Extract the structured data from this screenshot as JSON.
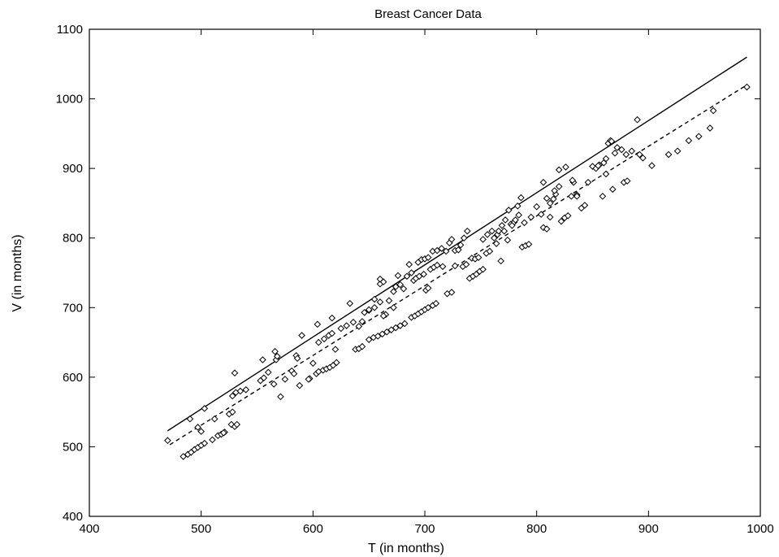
{
  "chart_data": {
    "type": "scatter",
    "title": "Breast Cancer Data",
    "xlabel": "T (in months)",
    "ylabel": "V (in months)",
    "xlim": [
      400,
      1000
    ],
    "ylim": [
      400,
      1100
    ],
    "xticks": [
      400,
      500,
      600,
      700,
      800,
      900,
      1000
    ],
    "yticks": [
      400,
      500,
      600,
      700,
      800,
      900,
      1000,
      1100
    ],
    "grid": false,
    "legend": "none",
    "marker": "diamond",
    "points": [
      [
        470,
        509
      ],
      [
        484,
        486
      ],
      [
        488,
        489
      ],
      [
        491,
        492
      ],
      [
        494,
        496
      ],
      [
        497,
        499
      ],
      [
        500,
        502
      ],
      [
        503,
        505
      ],
      [
        510,
        510
      ],
      [
        515,
        516
      ],
      [
        518,
        518
      ],
      [
        521,
        521
      ],
      [
        527,
        532
      ],
      [
        530,
        529
      ],
      [
        532,
        532
      ],
      [
        490,
        540
      ],
      [
        497,
        528
      ],
      [
        500,
        522
      ],
      [
        503,
        555
      ],
      [
        512,
        540
      ],
      [
        525,
        547
      ],
      [
        528,
        550
      ],
      [
        528,
        573
      ],
      [
        531,
        578
      ],
      [
        535,
        580
      ],
      [
        540,
        582
      ],
      [
        530,
        606
      ],
      [
        520,
        520
      ],
      [
        553,
        595
      ],
      [
        556,
        599
      ],
      [
        560,
        607
      ],
      [
        565,
        590
      ],
      [
        567,
        625
      ],
      [
        571,
        572
      ],
      [
        575,
        597
      ],
      [
        581,
        609
      ],
      [
        583,
        605
      ],
      [
        588,
        588
      ],
      [
        597,
        598
      ],
      [
        603,
        605
      ],
      [
        605,
        608
      ],
      [
        609,
        610
      ],
      [
        612,
        612
      ],
      [
        615,
        614
      ],
      [
        618,
        617
      ],
      [
        621,
        621
      ],
      [
        555,
        625
      ],
      [
        566,
        637
      ],
      [
        585,
        631
      ],
      [
        590,
        660
      ],
      [
        600,
        620
      ],
      [
        605,
        650
      ],
      [
        610,
        655
      ],
      [
        614,
        660
      ],
      [
        617,
        663
      ],
      [
        620,
        640
      ],
      [
        625,
        670
      ],
      [
        630,
        674
      ],
      [
        636,
        679
      ],
      [
        641,
        673
      ],
      [
        644,
        680
      ],
      [
        617,
        685
      ],
      [
        604,
        676
      ],
      [
        633,
        706
      ],
      [
        568,
        630
      ],
      [
        596,
        597
      ],
      [
        586,
        627
      ],
      [
        638,
        640
      ],
      [
        641,
        641
      ],
      [
        644,
        644
      ],
      [
        650,
        654
      ],
      [
        654,
        657
      ],
      [
        658,
        659
      ],
      [
        662,
        662
      ],
      [
        666,
        665
      ],
      [
        670,
        668
      ],
      [
        674,
        671
      ],
      [
        678,
        674
      ],
      [
        682,
        677
      ],
      [
        688,
        686
      ],
      [
        691,
        688
      ],
      [
        694,
        691
      ],
      [
        697,
        694
      ],
      [
        700,
        697
      ],
      [
        703,
        700
      ],
      [
        707,
        703
      ],
      [
        710,
        706
      ],
      [
        646,
        693
      ],
      [
        650,
        696
      ],
      [
        655,
        700
      ],
      [
        660,
        708
      ],
      [
        660,
        734
      ],
      [
        663,
        737
      ],
      [
        665,
        690
      ],
      [
        668,
        710
      ],
      [
        672,
        723
      ],
      [
        674,
        730
      ],
      [
        676,
        746
      ],
      [
        678,
        733
      ],
      [
        681,
        727
      ],
      [
        684,
        745
      ],
      [
        686,
        762
      ],
      [
        688,
        750
      ],
      [
        690,
        739
      ],
      [
        692,
        742
      ],
      [
        695,
        745
      ],
      [
        699,
        748
      ],
      [
        701,
        725
      ],
      [
        703,
        728
      ],
      [
        705,
        755
      ],
      [
        708,
        758
      ],
      [
        711,
        761
      ],
      [
        660,
        741
      ],
      [
        650,
        697
      ],
      [
        655,
        712
      ],
      [
        663,
        688
      ],
      [
        672,
        700
      ],
      [
        694,
        765
      ],
      [
        697,
        769
      ],
      [
        700,
        770
      ],
      [
        703,
        772
      ],
      [
        707,
        781
      ],
      [
        711,
        782
      ],
      [
        715,
        785
      ],
      [
        719,
        781
      ],
      [
        722,
        793
      ],
      [
        724,
        798
      ],
      [
        727,
        782
      ],
      [
        730,
        783
      ],
      [
        734,
        759
      ],
      [
        737,
        762
      ],
      [
        740,
        742
      ],
      [
        743,
        745
      ],
      [
        746,
        748
      ],
      [
        749,
        752
      ],
      [
        752,
        755
      ],
      [
        755,
        778
      ],
      [
        758,
        781
      ],
      [
        762,
        800
      ],
      [
        765,
        805
      ],
      [
        768,
        767
      ],
      [
        771,
        810
      ],
      [
        774,
        797
      ],
      [
        777,
        820
      ],
      [
        780,
        823
      ],
      [
        784,
        833
      ],
      [
        787,
        787
      ],
      [
        790,
        789
      ],
      [
        793,
        791
      ],
      [
        716,
        759
      ],
      [
        720,
        720
      ],
      [
        724,
        722
      ],
      [
        727,
        760
      ],
      [
        732,
        790
      ],
      [
        735,
        800
      ],
      [
        738,
        810
      ],
      [
        742,
        771
      ],
      [
        745,
        770
      ],
      [
        748,
        772
      ],
      [
        752,
        798
      ],
      [
        756,
        805
      ],
      [
        760,
        810
      ],
      [
        764,
        792
      ],
      [
        766,
        810
      ],
      [
        769,
        818
      ],
      [
        772,
        826
      ],
      [
        775,
        840
      ],
      [
        778,
        818
      ],
      [
        781,
        826
      ],
      [
        783,
        846
      ],
      [
        786,
        858
      ],
      [
        789,
        822
      ],
      [
        795,
        830
      ],
      [
        800,
        845
      ],
      [
        804,
        834
      ],
      [
        806,
        815
      ],
      [
        809,
        813
      ],
      [
        812,
        830
      ],
      [
        815,
        856
      ],
      [
        817,
        863
      ],
      [
        820,
        874
      ],
      [
        822,
        824
      ],
      [
        825,
        829
      ],
      [
        828,
        832
      ],
      [
        831,
        860
      ],
      [
        833,
        880
      ],
      [
        836,
        862
      ],
      [
        840,
        843
      ],
      [
        843,
        847
      ],
      [
        846,
        880
      ],
      [
        850,
        903
      ],
      [
        853,
        900
      ],
      [
        856,
        905
      ],
      [
        859,
        860
      ],
      [
        862,
        892
      ],
      [
        864,
        936
      ],
      [
        866,
        940
      ],
      [
        868,
        870
      ],
      [
        872,
        930
      ],
      [
        876,
        927
      ],
      [
        878,
        880
      ],
      [
        881,
        882
      ],
      [
        806,
        880
      ],
      [
        809,
        857
      ],
      [
        812,
        850
      ],
      [
        816,
        868
      ],
      [
        820,
        898
      ],
      [
        826,
        902
      ],
      [
        832,
        883
      ],
      [
        836,
        860
      ],
      [
        855,
        904
      ],
      [
        860,
        908
      ],
      [
        862,
        914
      ],
      [
        867,
        939
      ],
      [
        870,
        922
      ],
      [
        880,
        920
      ],
      [
        885,
        925
      ],
      [
        890,
        970
      ],
      [
        892,
        920
      ],
      [
        895,
        915
      ],
      [
        903,
        904
      ],
      [
        918,
        920
      ],
      [
        926,
        925
      ],
      [
        936,
        940
      ],
      [
        945,
        946
      ],
      [
        955,
        958
      ],
      [
        958,
        983
      ],
      [
        988,
        1017
      ]
    ],
    "fits": [
      {
        "style": "solid",
        "x": [
          470,
          988
        ],
        "y": [
          523,
          1060
        ]
      },
      {
        "style": "dashed",
        "x": [
          472,
          988
        ],
        "y": [
          503,
          1020
        ]
      }
    ]
  }
}
